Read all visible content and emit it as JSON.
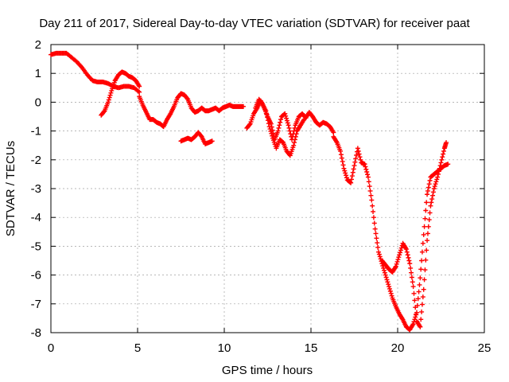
{
  "chart_data": {
    "type": "scatter",
    "title": "Day 211 of 2017, Sidereal Day-to-day VTEC variation (SDTVAR) for receiver paat",
    "xlabel": "GPS time / hours",
    "ylabel": "SDTVAR / TECUs",
    "xlim": [
      0,
      25
    ],
    "ylim": [
      -8,
      2
    ],
    "xticks": [
      "0",
      "5",
      "10",
      "15",
      "20",
      "25"
    ],
    "yticks": [
      "2",
      "1",
      "0",
      "-1",
      "-2",
      "-3",
      "-4",
      "-5",
      "-6",
      "-7",
      "-8"
    ],
    "grid": true,
    "marker": "+",
    "color": "#ff0000",
    "series": [
      {
        "name": "SDTVAR",
        "segments": [
          {
            "x": [
              0.0,
              0.3,
              0.6,
              0.9,
              1.2,
              1.5,
              1.8,
              2.1,
              2.4,
              2.7,
              3.0,
              3.3,
              3.6,
              3.9,
              4.2,
              4.5,
              4.8,
              5.1
            ],
            "y": [
              1.65,
              1.7,
              1.7,
              1.7,
              1.55,
              1.4,
              1.2,
              0.95,
              0.75,
              0.7,
              0.7,
              0.65,
              0.55,
              0.5,
              0.55,
              0.55,
              0.5,
              0.35
            ]
          },
          {
            "x": [
              2.9,
              3.1,
              3.3,
              3.5,
              3.7,
              3.9,
              4.1,
              4.3,
              4.5,
              4.7,
              4.9,
              5.1
            ],
            "y": [
              -0.45,
              -0.3,
              0.0,
              0.4,
              0.75,
              0.95,
              1.05,
              1.0,
              0.9,
              0.85,
              0.75,
              0.55
            ]
          },
          {
            "x": [
              5.1,
              5.3,
              5.5,
              5.7,
              5.9,
              6.1,
              6.3,
              6.5,
              6.7,
              6.9,
              7.1,
              7.3,
              7.5,
              7.7,
              7.9,
              8.1,
              8.3,
              8.5,
              8.7,
              8.9,
              9.1,
              9.3,
              9.5,
              9.7,
              9.9,
              10.1,
              10.3,
              10.5,
              10.7,
              10.9,
              11.1
            ],
            "y": [
              0.2,
              -0.1,
              -0.35,
              -0.6,
              -0.6,
              -0.7,
              -0.75,
              -0.85,
              -0.6,
              -0.4,
              -0.15,
              0.15,
              0.3,
              0.25,
              0.1,
              -0.2,
              -0.35,
              -0.3,
              -0.2,
              -0.3,
              -0.3,
              -0.25,
              -0.2,
              -0.3,
              -0.2,
              -0.15,
              -0.1,
              -0.15,
              -0.15,
              -0.15,
              -0.15
            ]
          },
          {
            "x": [
              7.5,
              7.7,
              7.9,
              8.1,
              8.3,
              8.5,
              8.7,
              8.9,
              9.1,
              9.3
            ],
            "y": [
              -1.35,
              -1.3,
              -1.25,
              -1.3,
              -1.2,
              -1.05,
              -1.2,
              -1.45,
              -1.4,
              -1.35
            ]
          },
          {
            "x": [
              11.3,
              11.5,
              11.7,
              11.9,
              12.1,
              12.3,
              12.5,
              12.7,
              12.9,
              13.1,
              13.3,
              13.5,
              13.7,
              13.9,
              14.1,
              14.3,
              14.5,
              14.7,
              14.9,
              15.1,
              15.3,
              15.5,
              15.7,
              15.9,
              16.1,
              16.3
            ],
            "y": [
              -0.9,
              -0.75,
              -0.4,
              -0.2,
              0.05,
              -0.2,
              -0.5,
              -0.75,
              -1.3,
              -1.0,
              -0.5,
              -0.4,
              -0.8,
              -1.3,
              -0.8,
              -0.5,
              -0.4,
              -0.55,
              -0.35,
              -0.5,
              -0.7,
              -0.8,
              -0.7,
              -0.75,
              -0.85,
              -1.05
            ]
          },
          {
            "x": [
              11.8,
              12.0,
              12.2,
              12.4,
              12.6,
              12.8,
              13.0,
              13.2,
              13.4,
              13.6,
              13.8,
              14.0,
              14.2,
              14.4,
              14.6
            ],
            "y": [
              -0.2,
              0.1,
              -0.05,
              -0.3,
              -0.85,
              -1.25,
              -1.6,
              -1.3,
              -1.4,
              -1.7,
              -1.85,
              -1.5,
              -1.0,
              -0.8,
              -0.6
            ]
          },
          {
            "x": [
              16.3,
              16.5,
              16.7,
              16.9,
              17.1,
              17.3,
              17.5,
              17.7,
              17.9,
              18.1,
              18.3,
              18.5,
              18.7,
              18.9,
              19.1,
              19.3,
              19.5,
              19.7,
              19.9,
              20.1,
              20.3,
              20.5,
              20.7,
              20.9,
              21.1,
              21.3,
              21.5,
              21.7,
              21.9,
              22.1,
              22.3,
              22.5,
              22.7,
              22.9
            ],
            "y": [
              -1.2,
              -1.4,
              -1.7,
              -2.3,
              -2.7,
              -2.8,
              -2.2,
              -1.6,
              -2.1,
              -2.15,
              -2.6,
              -3.4,
              -4.4,
              -5.2,
              -5.6,
              -6.0,
              -6.4,
              -6.8,
              -7.1,
              -7.35,
              -7.55,
              -7.8,
              -7.9,
              -7.7,
              -7.3,
              -6.1,
              -4.6,
              -3.2,
              -2.6,
              -2.5,
              -2.4,
              -2.3,
              -2.2,
              -2.15
            ]
          },
          {
            "x": [
              19.1,
              19.3,
              19.5,
              19.7,
              19.9,
              20.1,
              20.3,
              20.5,
              20.7,
              20.9,
              21.1,
              21.3,
              21.5,
              21.7,
              21.9,
              22.1,
              22.3,
              22.5,
              22.7,
              22.8
            ],
            "y": [
              -5.5,
              -5.65,
              -5.8,
              -5.9,
              -5.7,
              -5.3,
              -4.9,
              -5.1,
              -5.6,
              -6.4,
              -7.6,
              -7.8,
              -6.5,
              -4.8,
              -3.6,
              -3.0,
              -2.6,
              -2.1,
              -1.6,
              -1.4
            ]
          }
        ]
      }
    ]
  }
}
